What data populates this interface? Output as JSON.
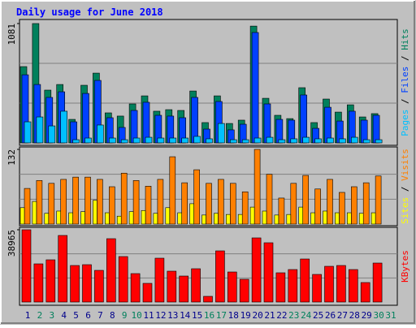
{
  "title": "Daily usage for June 2018",
  "legend_separator": " / ",
  "chart_data": [
    {
      "type": "bar",
      "categories": [
        "1",
        "2",
        "3",
        "4",
        "5",
        "6",
        "7",
        "8",
        "9",
        "10",
        "11",
        "12",
        "13",
        "14",
        "15",
        "16",
        "17",
        "18",
        "19",
        "20",
        "21",
        "22",
        "23",
        "24",
        "25",
        "26",
        "27",
        "28",
        "29",
        "30",
        "31"
      ],
      "category_colors": [
        "#00008b",
        "#00805c",
        "#00805c",
        "#00008b",
        "#00008b",
        "#00008b",
        "#00008b",
        "#00008b",
        "#00805c",
        "#00805c",
        "#00008b",
        "#00008b",
        "#00008b",
        "#00008b",
        "#00008b",
        "#00805c",
        "#00805c",
        "#00008b",
        "#00008b",
        "#00008b",
        "#00008b",
        "#00008b",
        "#00805c",
        "#00805c",
        "#00008b",
        "#00008b",
        "#00008b",
        "#00008b",
        "#00008b",
        "#00805c",
        "#00805c"
      ],
      "ylim": [
        0,
        1081
      ],
      "yticks": [
        1081
      ],
      "series": [
        {
          "name": "Hits",
          "color": "#00805c",
          "values": [
            691,
            1081,
            478,
            529,
            213,
            522,
            632,
            272,
            243,
            353,
            426,
            287,
            301,
            294,
            470,
            184,
            426,
            176,
            206,
            1058,
            404,
            250,
            220,
            500,
            184,
            397,
            279,
            345,
            235,
            265,
            null
          ]
        },
        {
          "name": "Files",
          "color": "#0040ff",
          "values": [
            617,
            529,
            412,
            463,
            191,
            448,
            566,
            228,
            140,
            294,
            368,
            250,
            243,
            228,
            412,
            125,
            375,
            118,
            169,
            1000,
            353,
            213,
            206,
            434,
            132,
            323,
            198,
            287,
            206,
            250,
            null
          ]
        },
        {
          "name": "Pages",
          "color": "#00c0ff",
          "values": [
            191,
            235,
            154,
            287,
            29,
            44,
            162,
            44,
            29,
            44,
            51,
            44,
            44,
            44,
            59,
            37,
            176,
            29,
            29,
            44,
            51,
            29,
            37,
            51,
            37,
            44,
            37,
            51,
            29,
            29,
            null
          ]
        }
      ]
    },
    {
      "type": "bar",
      "ylim": [
        0,
        132
      ],
      "yticks": [
        132
      ],
      "series": [
        {
          "name": "Visits",
          "color": "#ff8000",
          "values": [
            63,
            77,
            72,
            79,
            83,
            83,
            79,
            66,
            90,
            77,
            67,
            79,
            119,
            73,
            96,
            72,
            79,
            72,
            57,
            132,
            88,
            46,
            72,
            86,
            62,
            79,
            56,
            66,
            73,
            85,
            null
          ]
        },
        {
          "name": "Sites",
          "color": "#ffff00",
          "values": [
            29,
            40,
            19,
            23,
            20,
            22,
            42,
            20,
            14,
            22,
            24,
            19,
            29,
            20,
            36,
            16,
            19,
            17,
            17,
            30,
            23,
            16,
            17,
            30,
            20,
            23,
            20,
            20,
            19,
            20,
            null
          ]
        }
      ]
    },
    {
      "type": "bar",
      "ylim": [
        0,
        38965
      ],
      "yticks": [
        38965
      ],
      "series": [
        {
          "name": "KBytes",
          "color": "#ff0000",
          "values": [
            38965,
            20577,
            22766,
            35900,
            19701,
            20139,
            17074,
            34148,
            24517,
            15323,
            10069,
            23641,
            16636,
            14010,
            17950,
            3065,
            27581,
            16199,
            12258,
            34586,
            31959,
            15761,
            17512,
            23203,
            14885,
            19263,
            19701,
            17512,
            10507,
            21014,
            null
          ]
        }
      ]
    }
  ]
}
